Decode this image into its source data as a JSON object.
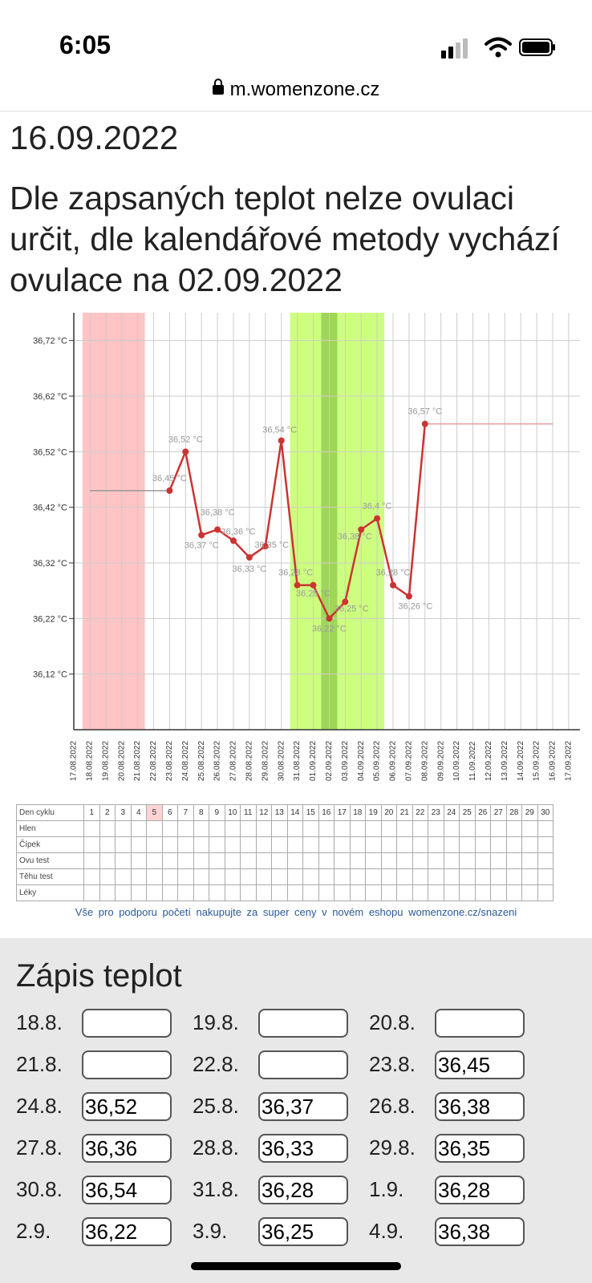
{
  "status_bar": {
    "time": "6:05"
  },
  "browser": {
    "url": "m.womenzone.cz"
  },
  "header": {
    "date": "16.09.2022",
    "message": "Dle zapsaných teplot nelze ovulaci určit, dle kalendářové metody vychází ovulace na 02.09.2022"
  },
  "chart_data": {
    "type": "line",
    "title": "",
    "xlabel": "",
    "ylabel": "",
    "ylim": [
      36.02,
      36.77
    ],
    "y_ticks": [
      "36,12 °C",
      "36,22 °C",
      "36,32 °C",
      "36,42 °C",
      "36,52 °C",
      "36,62 °C",
      "36,72 °C"
    ],
    "x": [
      "17.08.2022",
      "18.08.2022",
      "19.08.2022",
      "20.08.2022",
      "21.08.2022",
      "22.08.2022",
      "23.08.2022",
      "24.08.2022",
      "25.08.2022",
      "26.08.2022",
      "27.08.2022",
      "28.08.2022",
      "29.08.2022",
      "30.08.2022",
      "31.08.2022",
      "01.09.2022",
      "02.09.2022",
      "03.09.2022",
      "04.09.2022",
      "05.09.2022",
      "06.09.2022",
      "07.09.2022",
      "08.09.2022",
      "09.09.2022",
      "10.09.2022",
      "11.09.2022",
      "12.09.2022",
      "13.09.2022",
      "14.09.2022",
      "15.09.2022",
      "16.09.2022",
      "17.09.2022"
    ],
    "series": [
      {
        "values": [
          null,
          null,
          null,
          null,
          null,
          null,
          36.45,
          36.52,
          36.37,
          36.38,
          36.36,
          36.33,
          36.35,
          36.54,
          36.28,
          36.28,
          36.22,
          36.25,
          36.38,
          36.4,
          36.28,
          36.26,
          36.57,
          null,
          null,
          null,
          null,
          null,
          null,
          null,
          null,
          null
        ],
        "labels": [
          "",
          "",
          "",
          "",
          "",
          "",
          "36,45 °C",
          "36,52 °C",
          "36,37 °C",
          "36,38 °C",
          "36,36 °C",
          "36,33 °C",
          "36,35 °C",
          "36,54 °C",
          "36,28 °C",
          "36,28 °C",
          "36,22 °C",
          "36,25 °C",
          "36,38 °C",
          "36,4 °C",
          "36,28 °C",
          "36,26 °C",
          "36,57 °C",
          "",
          "",
          "",
          "",
          "",
          "",
          "",
          "",
          ""
        ]
      }
    ],
    "baseline_before": 36.45,
    "baseline_after": 36.57,
    "menstruation_days": [
      "18.08.2022",
      "21.08.2022"
    ],
    "fertile_window": [
      "31.08.2022",
      "05.09.2022"
    ],
    "ovulation_day": "02.09.2022",
    "colors": {
      "line": "#cc3333",
      "menstruation": "#ffc4c4",
      "fertile": "#ccff80",
      "ovulation": "#9ed65a",
      "grid": "#cccccc"
    }
  },
  "cycle_table": {
    "rows": [
      "Den cyklu",
      "Hlen",
      "Čípek",
      "Ovu test",
      "Těhu test",
      "Léky"
    ],
    "days": [
      "1",
      "2",
      "3",
      "4",
      "5",
      "6",
      "7",
      "8",
      "9",
      "10",
      "11",
      "12",
      "13",
      "14",
      "15",
      "16",
      "17",
      "18",
      "19",
      "20",
      "21",
      "22",
      "23",
      "24",
      "25",
      "26",
      "27",
      "28",
      "29",
      "30"
    ],
    "highlight_day": "5"
  },
  "promo": "Vše pro podporu početí nakupujte za super ceny v novém eshopu womenzone.cz/snazeni",
  "entry": {
    "title": "Zápis teplot",
    "fields": [
      {
        "label": "18.8.",
        "value": ""
      },
      {
        "label": "19.8.",
        "value": ""
      },
      {
        "label": "20.8.",
        "value": ""
      },
      {
        "label": "21.8.",
        "value": ""
      },
      {
        "label": "22.8.",
        "value": ""
      },
      {
        "label": "23.8.",
        "value": "36,45"
      },
      {
        "label": "24.8.",
        "value": "36,52"
      },
      {
        "label": "25.8.",
        "value": "36,37"
      },
      {
        "label": "26.8.",
        "value": "36,38"
      },
      {
        "label": "27.8.",
        "value": "36,36"
      },
      {
        "label": "28.8.",
        "value": "36,33"
      },
      {
        "label": "29.8.",
        "value": "36,35"
      },
      {
        "label": "30.8.",
        "value": "36,54"
      },
      {
        "label": "31.8.",
        "value": "36,28"
      },
      {
        "label": "1.9.",
        "value": "36,28"
      },
      {
        "label": "2.9.",
        "value": "36,22"
      },
      {
        "label": "3.9.",
        "value": "36,25"
      },
      {
        "label": "4.9.",
        "value": "36,38"
      }
    ]
  }
}
